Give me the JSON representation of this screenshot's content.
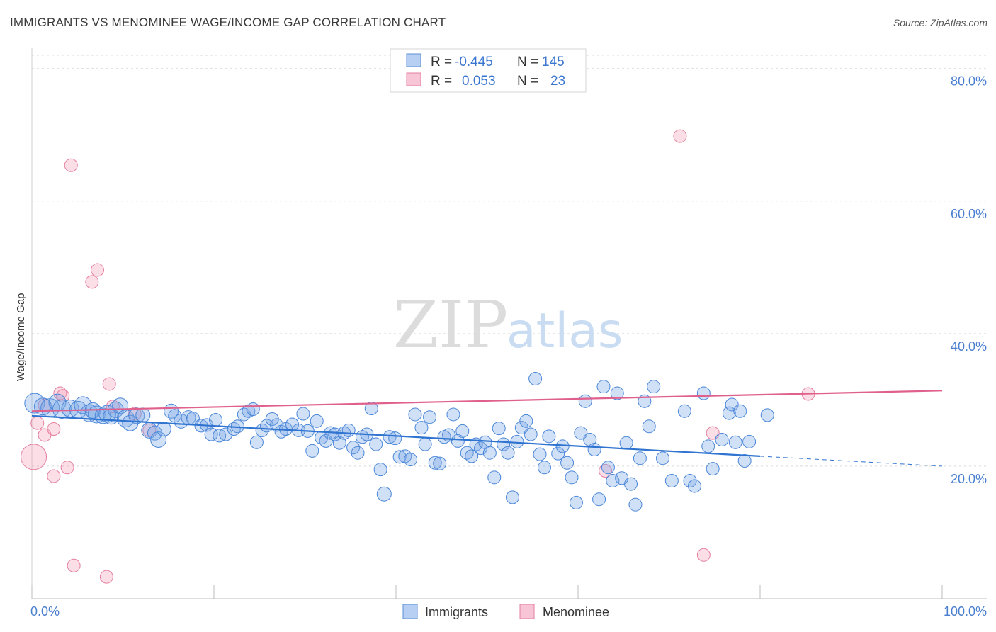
{
  "header": {
    "title": "IMMIGRANTS VS MENOMINEE WAGE/INCOME GAP CORRELATION CHART",
    "source": "Source: ZipAtlas.com"
  },
  "watermark": {
    "zip": "ZIP",
    "atlas": "atlas"
  },
  "colors": {
    "blue": "#4a86d8",
    "blue_fill": "rgba(120,165,230,0.35)",
    "blue_line": "#2f74d0",
    "pink": "#e47fa0",
    "pink_fill": "rgba(245,160,185,0.35)",
    "pink_line": "#e0608d",
    "tick_label": "#4a7fd0",
    "grid": "#d9d9d9"
  },
  "legend": {
    "rows": [
      {
        "r_label": "R =",
        "r_value": "-0.445",
        "n_label": "N =",
        "n_value": "145"
      },
      {
        "r_label": "R =",
        "r_value": "0.053",
        "n_label": "N =",
        "n_value": "23"
      }
    ]
  },
  "bottom_legend": {
    "items": [
      {
        "label": "Immigrants"
      },
      {
        "label": "Menominee"
      }
    ]
  },
  "chart_data": {
    "type": "scatter",
    "title": "IMMIGRANTS VS MENOMINEE WAGE/INCOME GAP CORRELATION CHART",
    "xlabel": "",
    "ylabel": "Wage/Income Gap",
    "xlim": [
      0,
      100
    ],
    "ylim": [
      0,
      82
    ],
    "x_tick_labels": [
      "0.0%",
      "100.0%"
    ],
    "y_ticks": [
      20,
      40,
      60,
      80
    ],
    "y_tick_labels": [
      "20.0%",
      "40.0%",
      "60.0%",
      "80.0%"
    ],
    "grid": true,
    "series": [
      {
        "name": "Immigrants",
        "r": -0.445,
        "n": 145,
        "trend": {
          "x0": 0,
          "y0": 27.6,
          "x1": 80,
          "y1": 21.5,
          "dash_to_x": 100,
          "dash_to_y": 20.0
        },
        "points": [
          [
            0.3,
            29.5,
            14
          ],
          [
            1.2,
            29.0,
            12
          ],
          [
            2.0,
            28.8,
            13
          ],
          [
            2.8,
            29.6,
            12
          ],
          [
            3.3,
            28.6,
            13
          ],
          [
            4.2,
            28.7,
            12
          ],
          [
            5.1,
            28.5,
            12
          ],
          [
            5.6,
            29.2,
            12
          ],
          [
            6.3,
            28.0,
            12
          ],
          [
            6.7,
            28.4,
            11
          ],
          [
            7.1,
            27.8,
            12
          ],
          [
            7.8,
            27.6,
            11
          ],
          [
            8.3,
            27.9,
            12
          ],
          [
            8.7,
            27.5,
            11
          ],
          [
            9.2,
            28.5,
            11
          ],
          [
            9.7,
            29.1,
            11
          ],
          [
            10.3,
            27.2,
            12
          ],
          [
            10.8,
            26.5,
            11
          ],
          [
            11.5,
            27.6,
            11
          ],
          [
            12.2,
            27.7,
            10
          ],
          [
            12.9,
            25.4,
            11
          ],
          [
            13.5,
            25.0,
            10
          ],
          [
            13.9,
            24.0,
            11
          ],
          [
            14.5,
            25.6,
            10
          ],
          [
            15.3,
            28.3,
            10
          ],
          [
            15.7,
            27.6,
            9
          ],
          [
            16.4,
            26.8,
            10
          ],
          [
            17.2,
            27.3,
            10
          ],
          [
            17.7,
            27.2,
            9
          ],
          [
            18.6,
            26.1,
            9
          ],
          [
            19.2,
            26.2,
            9
          ],
          [
            19.7,
            24.8,
            9
          ],
          [
            20.2,
            27.0,
            9
          ],
          [
            20.6,
            24.6,
            9
          ],
          [
            21.3,
            24.8,
            9
          ],
          [
            22.2,
            25.6,
            9
          ],
          [
            22.6,
            26.0,
            9
          ],
          [
            23.3,
            27.8,
            9
          ],
          [
            23.8,
            28.3,
            9
          ],
          [
            24.3,
            28.6,
            9
          ],
          [
            24.7,
            23.6,
            9
          ],
          [
            25.3,
            25.4,
            9
          ],
          [
            25.8,
            26.1,
            9
          ],
          [
            26.4,
            27.1,
            9
          ],
          [
            26.9,
            26.2,
            9
          ],
          [
            27.4,
            25.2,
            9
          ],
          [
            27.9,
            25.6,
            9
          ],
          [
            28.6,
            26.3,
            9
          ],
          [
            29.3,
            25.4,
            9
          ],
          [
            29.8,
            27.9,
            9
          ],
          [
            30.3,
            25.3,
            9
          ],
          [
            30.8,
            22.3,
            9
          ],
          [
            31.3,
            26.8,
            9
          ],
          [
            31.8,
            24.3,
            9
          ],
          [
            32.3,
            23.8,
            9
          ],
          [
            32.8,
            25.0,
            9
          ],
          [
            33.3,
            24.8,
            9
          ],
          [
            33.8,
            23.5,
            9
          ],
          [
            34.3,
            25.0,
            9
          ],
          [
            34.8,
            25.4,
            9
          ],
          [
            35.3,
            22.8,
            9
          ],
          [
            35.8,
            22.0,
            9
          ],
          [
            36.3,
            24.4,
            9
          ],
          [
            36.8,
            24.8,
            9
          ],
          [
            37.3,
            28.7,
            9
          ],
          [
            37.8,
            23.3,
            9
          ],
          [
            38.3,
            19.5,
            9
          ],
          [
            38.7,
            15.8,
            10
          ],
          [
            39.3,
            24.4,
            9
          ],
          [
            39.9,
            24.2,
            9
          ],
          [
            40.4,
            21.4,
            9
          ],
          [
            41.0,
            21.5,
            9
          ],
          [
            41.6,
            21.0,
            9
          ],
          [
            42.1,
            27.8,
            9
          ],
          [
            42.8,
            25.8,
            9
          ],
          [
            43.2,
            23.3,
            9
          ],
          [
            43.7,
            27.4,
            9
          ],
          [
            44.3,
            20.5,
            9
          ],
          [
            44.8,
            20.4,
            9
          ],
          [
            45.3,
            24.4,
            9
          ],
          [
            45.8,
            24.7,
            9
          ],
          [
            46.3,
            27.8,
            9
          ],
          [
            46.8,
            23.8,
            9
          ],
          [
            47.3,
            25.3,
            9
          ],
          [
            47.8,
            22.0,
            9
          ],
          [
            48.3,
            21.5,
            9
          ],
          [
            48.8,
            23.3,
            9
          ],
          [
            49.3,
            22.7,
            9
          ],
          [
            49.8,
            23.6,
            9
          ],
          [
            50.3,
            22.0,
            9
          ],
          [
            50.8,
            18.3,
            9
          ],
          [
            51.3,
            25.7,
            9
          ],
          [
            51.8,
            23.3,
            9
          ],
          [
            52.3,
            22.0,
            9
          ],
          [
            52.8,
            15.3,
            9
          ],
          [
            53.3,
            23.7,
            9
          ],
          [
            53.8,
            25.8,
            9
          ],
          [
            54.3,
            26.8,
            9
          ],
          [
            54.8,
            24.8,
            9
          ],
          [
            55.3,
            33.2,
            9
          ],
          [
            55.8,
            21.8,
            9
          ],
          [
            56.3,
            19.8,
            9
          ],
          [
            56.8,
            24.5,
            9
          ],
          [
            57.8,
            21.9,
            9
          ],
          [
            58.3,
            23.0,
            9
          ],
          [
            58.8,
            20.5,
            9
          ],
          [
            59.3,
            18.3,
            9
          ],
          [
            59.8,
            14.5,
            9
          ],
          [
            60.3,
            25.0,
            9
          ],
          [
            60.8,
            29.8,
            9
          ],
          [
            61.3,
            24.0,
            9
          ],
          [
            61.8,
            22.5,
            9
          ],
          [
            62.3,
            15.0,
            9
          ],
          [
            62.8,
            32.0,
            9
          ],
          [
            63.3,
            19.8,
            9
          ],
          [
            63.8,
            17.8,
            9
          ],
          [
            64.3,
            31.0,
            9
          ],
          [
            64.8,
            18.2,
            9
          ],
          [
            65.3,
            23.5,
            9
          ],
          [
            65.8,
            17.3,
            9
          ],
          [
            66.3,
            14.2,
            9
          ],
          [
            66.8,
            21.2,
            9
          ],
          [
            67.3,
            29.8,
            9
          ],
          [
            67.8,
            26.0,
            9
          ],
          [
            68.3,
            32.0,
            9
          ],
          [
            69.3,
            21.2,
            9
          ],
          [
            70.3,
            17.8,
            9
          ],
          [
            71.7,
            28.3,
            9
          ],
          [
            72.3,
            17.8,
            9
          ],
          [
            72.8,
            17.0,
            9
          ],
          [
            73.8,
            31.0,
            9
          ],
          [
            74.3,
            23.0,
            9
          ],
          [
            74.8,
            19.6,
            9
          ],
          [
            75.8,
            24.0,
            9
          ],
          [
            76.6,
            28.0,
            9
          ],
          [
            76.9,
            29.3,
            9
          ],
          [
            77.3,
            23.6,
            9
          ],
          [
            77.8,
            28.3,
            9
          ],
          [
            78.3,
            20.8,
            9
          ],
          [
            78.8,
            23.7,
            9
          ],
          [
            80.8,
            27.7,
            9
          ]
        ]
      },
      {
        "name": "Menominee",
        "r": 0.053,
        "n": 23,
        "trend": {
          "x0": 0,
          "y0": 28.3,
          "x1": 100,
          "y1": 31.4
        },
        "points": [
          [
            0.2,
            21.4,
            18
          ],
          [
            0.6,
            26.5,
            9
          ],
          [
            1.4,
            29.2,
            9
          ],
          [
            1.4,
            24.7,
            9
          ],
          [
            2.4,
            18.5,
            9
          ],
          [
            2.4,
            25.6,
            9
          ],
          [
            3.1,
            31.0,
            9
          ],
          [
            3.4,
            30.6,
            9
          ],
          [
            3.9,
            19.8,
            9
          ],
          [
            4.3,
            65.4,
            9
          ],
          [
            4.6,
            5.0,
            9
          ],
          [
            6.6,
            47.8,
            9
          ],
          [
            7.2,
            49.6,
            9
          ],
          [
            8.2,
            3.3,
            9
          ],
          [
            8.5,
            32.4,
            9
          ],
          [
            8.9,
            29.0,
            9
          ],
          [
            11.3,
            27.9,
            9
          ],
          [
            12.9,
            25.4,
            9
          ],
          [
            63.0,
            19.3,
            9
          ],
          [
            71.2,
            69.8,
            9
          ],
          [
            73.8,
            6.6,
            9
          ],
          [
            74.8,
            25.0,
            9
          ],
          [
            85.3,
            30.9,
            9
          ]
        ]
      }
    ]
  }
}
